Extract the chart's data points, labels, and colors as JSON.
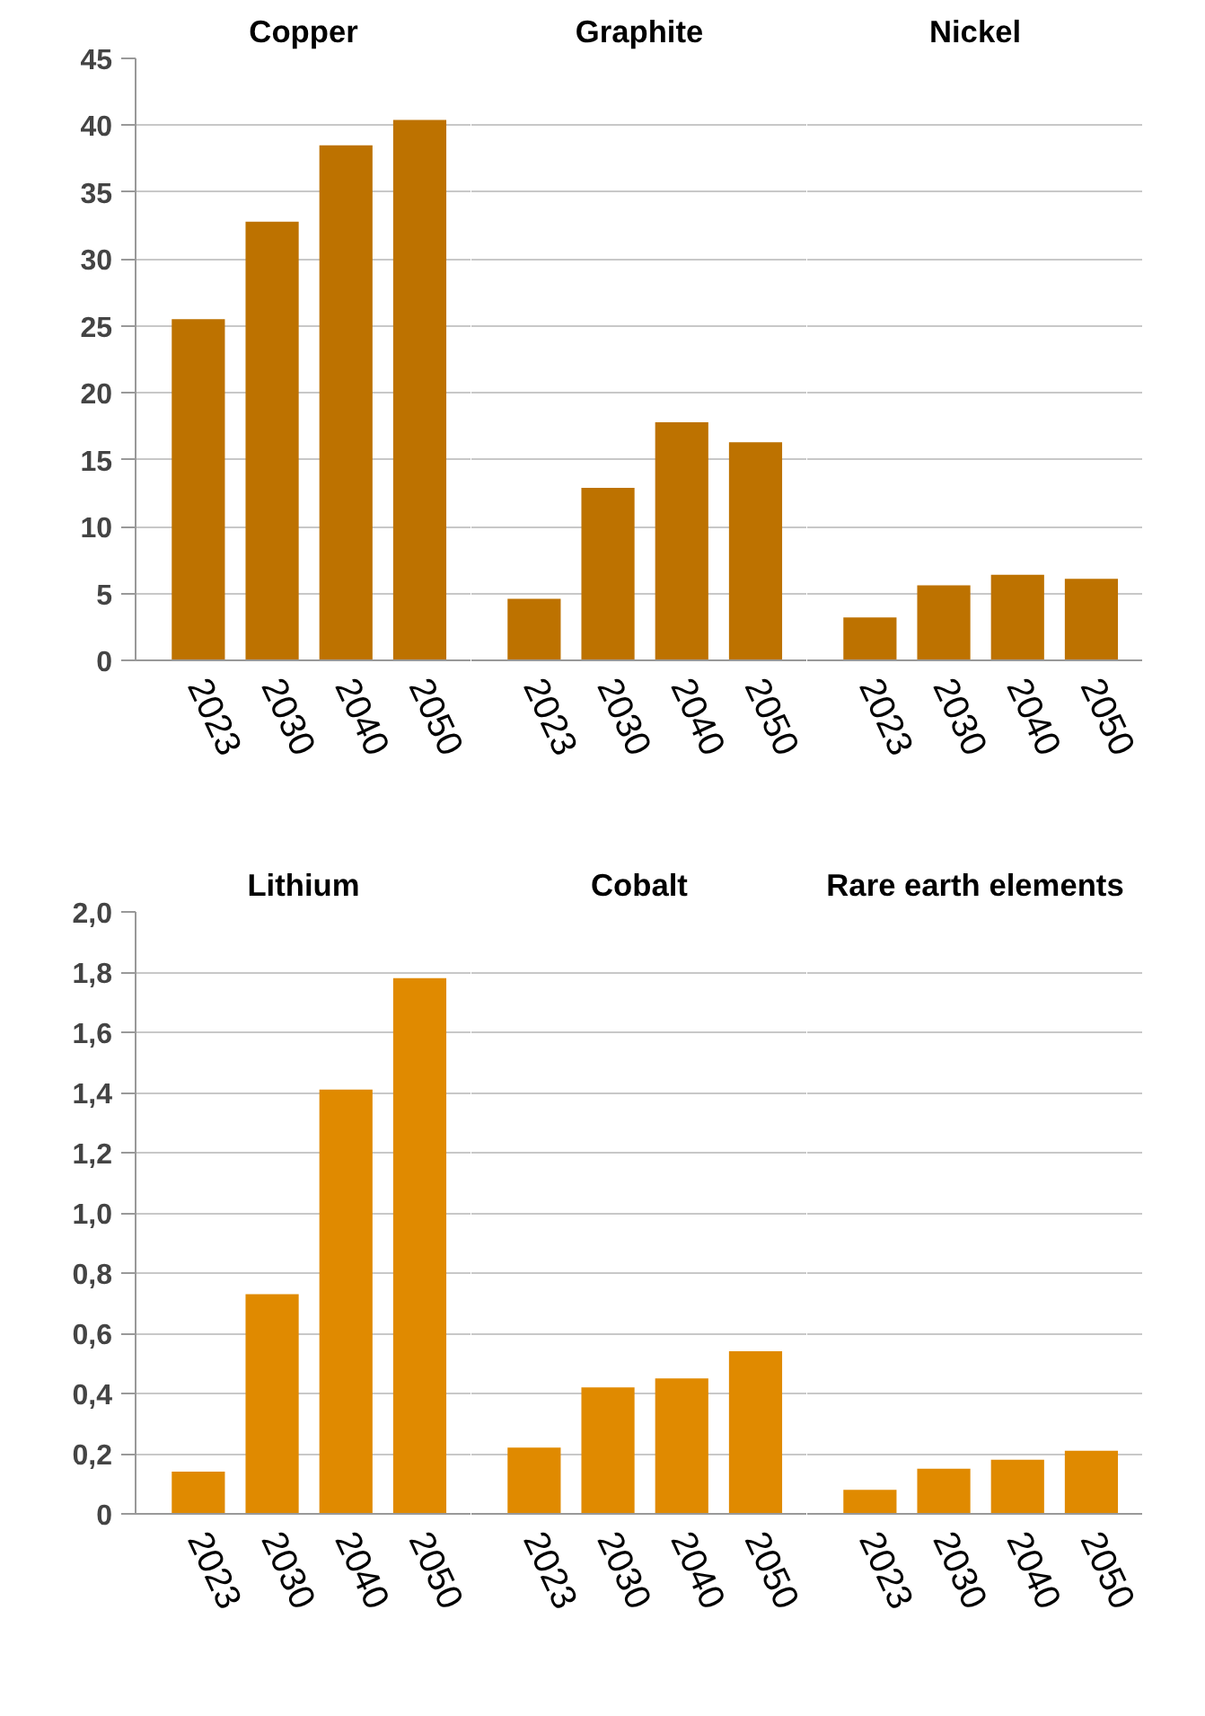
{
  "chart_data": [
    {
      "type": "bar",
      "title": "Copper",
      "categories": [
        "2023",
        "2030",
        "2040",
        "2050"
      ],
      "values": [
        25.5,
        32.8,
        38.5,
        40.4
      ],
      "color": "#bd7200",
      "ylim": [
        0,
        45
      ],
      "yticks": [
        0,
        5,
        10,
        15,
        20,
        25,
        30,
        35,
        40,
        45
      ],
      "grid": "y"
    },
    {
      "type": "bar",
      "title": "Graphite",
      "categories": [
        "2023",
        "2030",
        "2040",
        "2050"
      ],
      "values": [
        4.6,
        12.9,
        17.8,
        16.3
      ],
      "color": "#bd7200",
      "ylim": [
        0,
        45
      ],
      "yticks": [
        0,
        5,
        10,
        15,
        20,
        25,
        30,
        35,
        40,
        45
      ],
      "grid": "y",
      "tick_labels": "x"
    },
    {
      "type": "bar",
      "title": "Nickel",
      "categories": [
        "2023",
        "2030",
        "2040",
        "2050"
      ],
      "values": [
        3.2,
        5.6,
        6.4,
        6.1
      ],
      "color": "#bd7200",
      "ylim": [
        0,
        45
      ],
      "yticks": [
        0,
        5,
        10,
        15,
        20,
        25,
        30,
        35,
        40,
        45
      ],
      "grid": "y",
      "tick_labels": "x"
    },
    {
      "type": "bar",
      "title": "Lithium",
      "categories": [
        "2023",
        "2030",
        "2040",
        "2050"
      ],
      "values": [
        0.14,
        0.73,
        1.41,
        1.78
      ],
      "color": "#e08a00",
      "ylim": [
        0,
        2.0
      ],
      "yticks": [
        0,
        {
          "value": 0.2,
          "label": "0,2"
        },
        {
          "value": 0.4,
          "label": "0,4"
        },
        {
          "value": 0.6,
          "label": "0,6"
        },
        {
          "value": 0.8,
          "label": "0,8"
        },
        {
          "value": 1.0,
          "label": "1,0"
        },
        {
          "value": 1.2,
          "label": "1,2"
        },
        {
          "value": 1.4,
          "label": "1,4"
        },
        {
          "value": 1.6,
          "label": "1,6"
        },
        {
          "value": 1.8,
          "label": "1,8"
        },
        {
          "value": 2.0,
          "label": "2,0"
        }
      ],
      "grid": "y"
    },
    {
      "type": "bar",
      "title": "Cobalt",
      "categories": [
        "2023",
        "2030",
        "2040",
        "2050"
      ],
      "values": [
        0.22,
        0.42,
        0.45,
        0.54
      ],
      "color": "#e08a00",
      "ylim": [
        0,
        2.0
      ],
      "yticks": [
        0,
        0.2,
        0.4,
        0.6,
        0.8,
        1.0,
        1.2,
        1.4,
        1.6,
        1.8,
        2.0
      ],
      "grid": "y",
      "tick_labels": "x"
    },
    {
      "type": "bar",
      "title": "Rare earth elements",
      "categories": [
        "2023",
        "2030",
        "2040",
        "2050"
      ],
      "values": [
        0.08,
        0.15,
        0.18,
        0.21
      ],
      "color": "#e08a00",
      "ylim": [
        0,
        2.0
      ],
      "yticks": [
        0,
        0.2,
        0.4,
        0.6,
        0.8,
        1.0,
        1.2,
        1.4,
        1.6,
        1.8,
        2.0
      ],
      "grid": "y",
      "tick_labels": "x"
    }
  ]
}
